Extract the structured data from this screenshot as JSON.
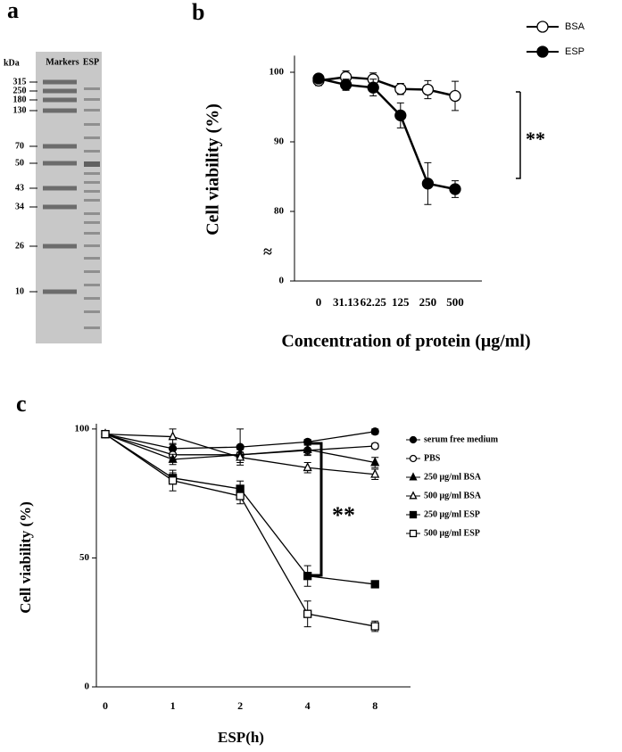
{
  "panel_a": {
    "label": "a",
    "unit": "kDa",
    "lanes": [
      "Markers",
      "ESP"
    ],
    "markers": [
      315,
      250,
      180,
      130,
      70,
      50,
      43,
      34,
      26,
      10
    ]
  },
  "chart_data": [
    {
      "type": "line",
      "panel_label": "b",
      "ylabel": "Cell viability (%)",
      "xlabel": "Concentration of protein (μg/ml)",
      "categories": [
        "0",
        "31.13",
        "62.25",
        "125",
        "250",
        "500"
      ],
      "series": [
        {
          "name": "BSA",
          "color": "#000000",
          "marker": "circle",
          "marker_fill": "#ffffff",
          "values": [
            98.8,
            99.3,
            99.0,
            97.6,
            97.5,
            96.6
          ],
          "errors": [
            0.7,
            0.9,
            0.9,
            0.8,
            1.3,
            2.1
          ]
        },
        {
          "name": "ESP",
          "color": "#000000",
          "marker": "circle",
          "marker_fill": "#000000",
          "values": [
            99.1,
            98.2,
            97.8,
            93.8,
            84.0,
            83.2
          ],
          "errors": [
            0.6,
            0.8,
            1.2,
            1.8,
            3.0,
            1.2
          ]
        }
      ],
      "ylim": [
        0,
        102
      ],
      "yticks": [
        0,
        80,
        90,
        100
      ],
      "y_break": [
        0,
        70
      ],
      "annotation": "**",
      "legend": "top-right"
    },
    {
      "type": "line",
      "panel_label": "c",
      "ylabel": "Cell viability (%)",
      "xlabel": "ESP(h)",
      "categories": [
        "0",
        "1",
        "2",
        "4",
        "8"
      ],
      "series": [
        {
          "name": "serum free medium",
          "color": "#000000",
          "marker": "circle",
          "marker_fill": "#000000",
          "values": [
            98,
            92.4,
            93,
            95,
            99
          ],
          "errors": [
            1,
            2,
            7,
            1,
            1
          ]
        },
        {
          "name": "PBS",
          "color": "#000000",
          "marker": "circle",
          "marker_fill": "#ffffff",
          "values": [
            98,
            90,
            90,
            91.7,
            93.4
          ],
          "errors": [
            1,
            2,
            2,
            2,
            1
          ]
        },
        {
          "name": "250 μg/ml BSA",
          "color": "#000000",
          "marker": "triangle",
          "marker_fill": "#000000",
          "values": [
            98,
            88.2,
            90,
            92,
            87
          ],
          "errors": [
            1,
            2,
            2,
            2,
            2
          ]
        },
        {
          "name": "500 μg/ml BSA",
          "color": "#000000",
          "marker": "triangle",
          "marker_fill": "#ffffff",
          "values": [
            98,
            97,
            89,
            85,
            82.4
          ],
          "errors": [
            1,
            3,
            2,
            2,
            2
          ]
        },
        {
          "name": "250 μg/ml ESP",
          "color": "#000000",
          "marker": "square",
          "marker_fill": "#000000",
          "values": [
            98,
            81,
            76.8,
            43,
            39.8
          ],
          "errors": [
            1,
            2,
            3,
            4,
            1
          ]
        },
        {
          "name": "500 μg/ml ESP",
          "color": "#000000",
          "marker": "square",
          "marker_fill": "#ffffff",
          "values": [
            98,
            80,
            74,
            28.3,
            23.5
          ],
          "errors": [
            1,
            4,
            3,
            5,
            2
          ]
        }
      ],
      "ylim": [
        0,
        101
      ],
      "yticks": [
        0,
        50,
        100
      ],
      "annotation": "**",
      "legend": "right"
    }
  ]
}
